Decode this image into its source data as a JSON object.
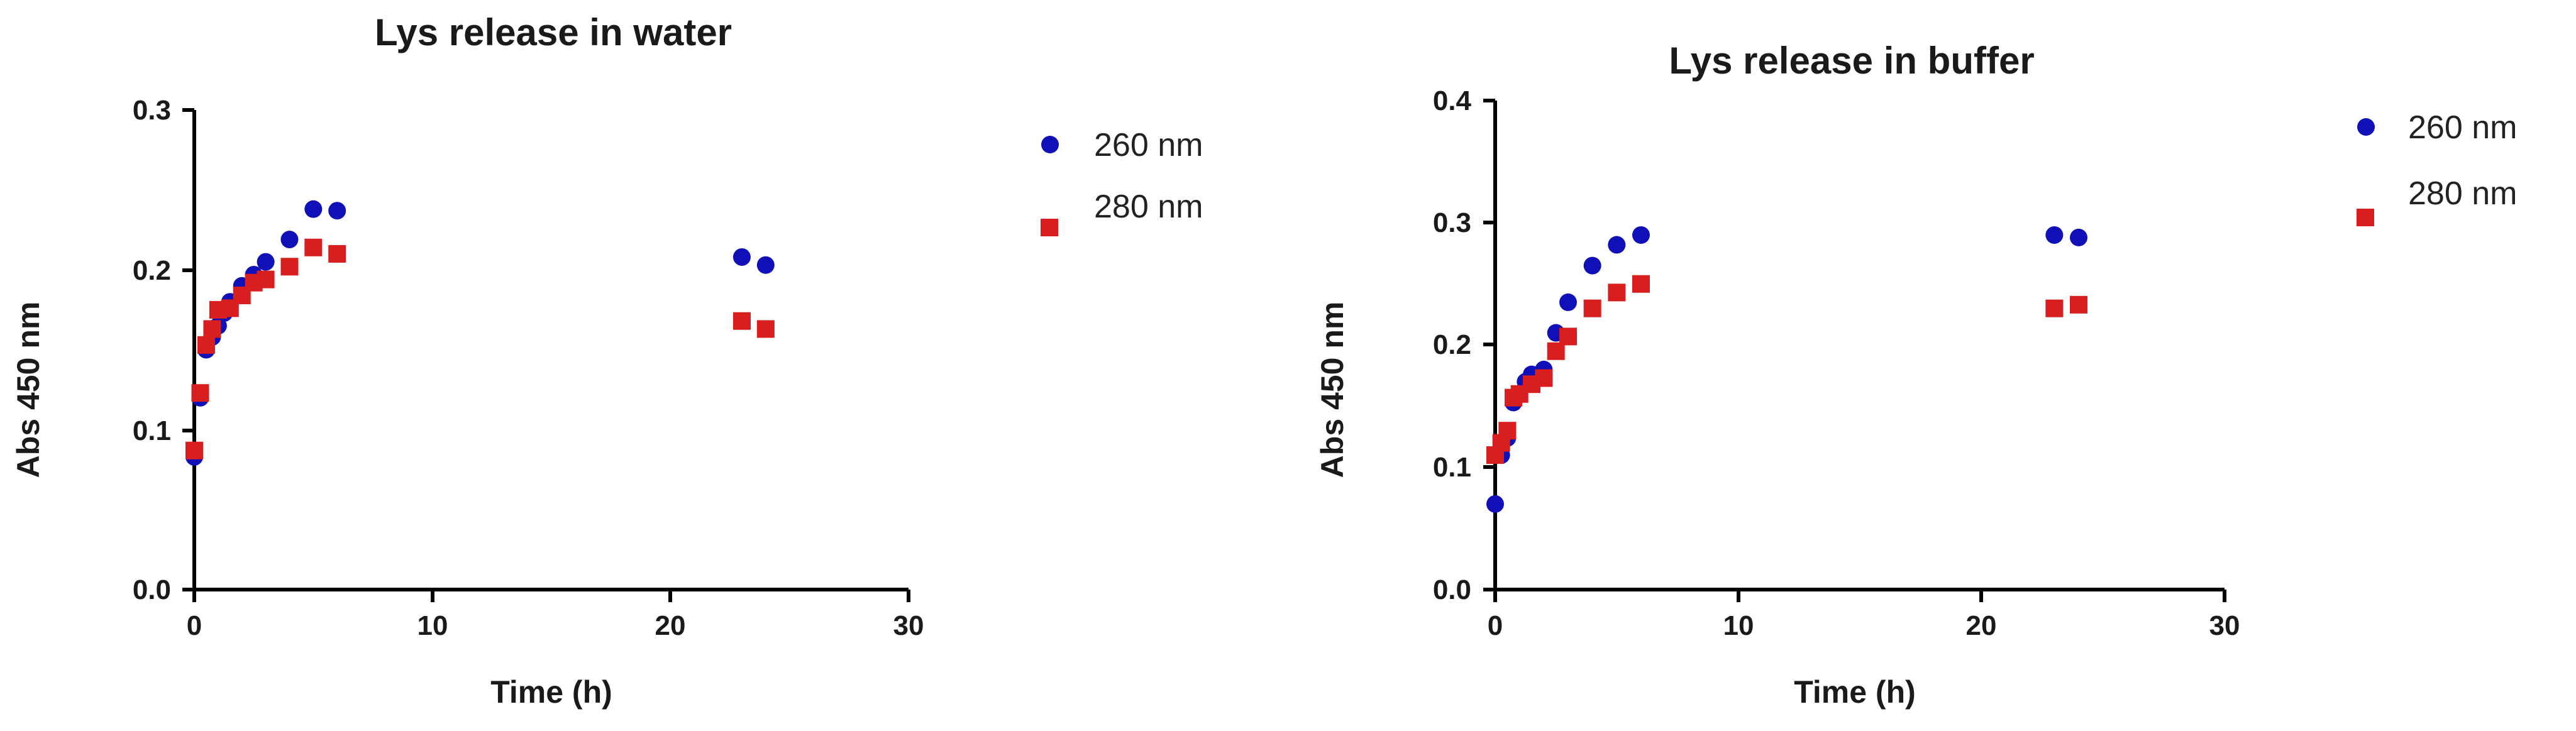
{
  "colors": {
    "series_260": "#1010b8",
    "series_280": "#d81e1e"
  },
  "chart_data": [
    {
      "type": "scatter",
      "title": "Lys release in water",
      "xlabel": "Time (h)",
      "ylabel": "Abs 450 nm",
      "xlim": [
        0,
        30
      ],
      "ylim": [
        0,
        0.3
      ],
      "xticks": [
        "0",
        "10",
        "20",
        "30"
      ],
      "yticks": [
        "0.0",
        "0.1",
        "0.2",
        "0.3"
      ],
      "grid": false,
      "legend_position": "right",
      "series": [
        {
          "name": "260 nm",
          "marker": "circle",
          "color_key": "series_260",
          "points": [
            [
              0,
              0.083
            ],
            [
              0.25,
              0.12
            ],
            [
              0.5,
              0.15
            ],
            [
              0.75,
              0.158
            ],
            [
              1,
              0.165
            ],
            [
              1.25,
              0.173
            ],
            [
              1.5,
              0.18
            ],
            [
              2,
              0.19
            ],
            [
              2.5,
              0.197
            ],
            [
              3,
              0.205
            ],
            [
              4,
              0.219
            ],
            [
              5,
              0.238
            ],
            [
              6,
              0.237
            ],
            [
              23,
              0.208
            ],
            [
              24,
              0.203
            ]
          ]
        },
        {
          "name": "280 nm",
          "marker": "square",
          "color_key": "series_280",
          "points": [
            [
              0,
              0.087
            ],
            [
              0.25,
              0.123
            ],
            [
              0.5,
              0.153
            ],
            [
              0.75,
              0.163
            ],
            [
              1,
              0.175
            ],
            [
              1.5,
              0.176
            ],
            [
              2,
              0.184
            ],
            [
              2.5,
              0.192
            ],
            [
              3,
              0.194
            ],
            [
              4,
              0.202
            ],
            [
              5,
              0.214
            ],
            [
              6,
              0.21
            ],
            [
              23,
              0.168
            ],
            [
              24,
              0.163
            ]
          ]
        }
      ]
    },
    {
      "type": "scatter",
      "title": "Lys release in buffer",
      "xlabel": "Time (h)",
      "ylabel": "Abs 450 nm",
      "xlim": [
        0,
        30
      ],
      "ylim": [
        0,
        0.4
      ],
      "xticks": [
        "0",
        "10",
        "20",
        "30"
      ],
      "yticks": [
        "0.0",
        "0.1",
        "0.2",
        "0.3",
        "0.4"
      ],
      "grid": false,
      "legend_position": "right",
      "series": [
        {
          "name": "260 nm",
          "marker": "circle",
          "color_key": "series_260",
          "points": [
            [
              0,
              0.07
            ],
            [
              0.25,
              0.11
            ],
            [
              0.5,
              0.124
            ],
            [
              0.75,
              0.153
            ],
            [
              1,
              0.16
            ],
            [
              1.25,
              0.17
            ],
            [
              1.5,
              0.176
            ],
            [
              2,
              0.18
            ],
            [
              2.5,
              0.21
            ],
            [
              3,
              0.235
            ],
            [
              4,
              0.265
            ],
            [
              5,
              0.282
            ],
            [
              6,
              0.29
            ],
            [
              23,
              0.29
            ],
            [
              24,
              0.288
            ]
          ]
        },
        {
          "name": "280 nm",
          "marker": "square",
          "color_key": "series_280",
          "points": [
            [
              0,
              0.11
            ],
            [
              0.25,
              0.12
            ],
            [
              0.5,
              0.13
            ],
            [
              0.75,
              0.157
            ],
            [
              1,
              0.16
            ],
            [
              1.5,
              0.168
            ],
            [
              2,
              0.173
            ],
            [
              2.5,
              0.195
            ],
            [
              3,
              0.207
            ],
            [
              4,
              0.23
            ],
            [
              5,
              0.243
            ],
            [
              6,
              0.25
            ],
            [
              23,
              0.23
            ],
            [
              24,
              0.233
            ]
          ]
        }
      ]
    }
  ]
}
